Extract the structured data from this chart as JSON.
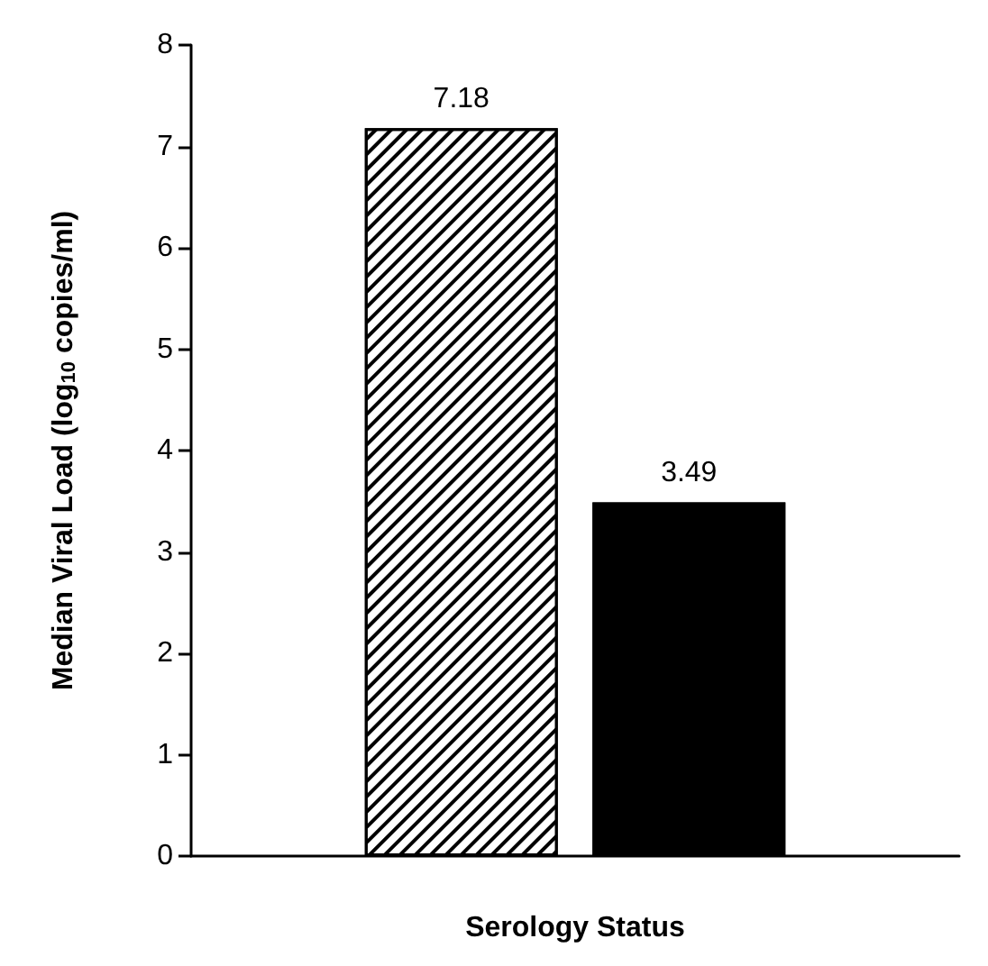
{
  "chart_data": {
    "type": "bar",
    "xlabel": "Serology Status",
    "ylabel": "Median Viral Load (log$_{10}$ copies/ml)",
    "categories": [
      null
    ],
    "series": [
      {
        "color": "#ffffff",
        "values": [
          7.18
        ]
      },
      {
        "color": "#000000",
        "values": [
          3.49
        ]
      }
    ],
    "ylim": [
      0,
      8
    ],
    "yticks": [
      0,
      1,
      2,
      3,
      4,
      5,
      6,
      7,
      8
    ],
    "grid": false,
    "data_labels": true
  }
}
